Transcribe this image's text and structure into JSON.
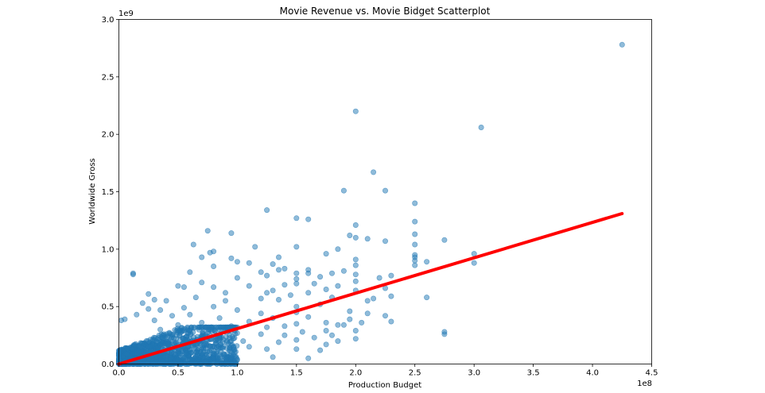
{
  "chart_data": {
    "type": "scatter",
    "title": "Movie Revenue vs. Movie Bidget Scatterplot",
    "xlabel": "Production Budget",
    "ylabel": "Worldwide Gross",
    "x_offset_label": "1e8",
    "y_offset_label": "1e9",
    "xlim": [
      0,
      4.5
    ],
    "ylim": [
      0,
      3.0
    ],
    "x_ticks": [
      "0.0",
      "0.5",
      "1.0",
      "1.5",
      "2.0",
      "2.5",
      "3.0",
      "3.5",
      "4.0",
      "4.5"
    ],
    "y_ticks": [
      "0.0",
      "0.5",
      "1.0",
      "1.5",
      "2.0",
      "2.5",
      "3.0"
    ],
    "grid": false,
    "point_color": "#1f77b4",
    "line_color": "#ff0000",
    "points": [
      [
        4.25,
        2.78
      ],
      [
        2.0,
        2.2
      ],
      [
        3.06,
        2.06
      ],
      [
        2.15,
        1.67
      ],
      [
        2.25,
        1.51
      ],
      [
        1.9,
        1.51
      ],
      [
        2.5,
        1.4
      ],
      [
        1.25,
        1.34
      ],
      [
        1.5,
        1.27
      ],
      [
        1.6,
        1.26
      ],
      [
        2.5,
        1.24
      ],
      [
        2.0,
        1.21
      ],
      [
        0.75,
        1.16
      ],
      [
        0.95,
        1.14
      ],
      [
        2.5,
        1.13
      ],
      [
        1.95,
        1.12
      ],
      [
        2.0,
        1.1
      ],
      [
        2.1,
        1.09
      ],
      [
        2.75,
        1.08
      ],
      [
        2.25,
        1.07
      ],
      [
        2.5,
        1.04
      ],
      [
        0.63,
        1.04
      ],
      [
        1.15,
        1.02
      ],
      [
        1.5,
        1.02
      ],
      [
        1.85,
        1.0
      ],
      [
        0.8,
        0.98
      ],
      [
        0.77,
        0.97
      ],
      [
        3.0,
        0.96
      ],
      [
        1.75,
        0.96
      ],
      [
        2.5,
        0.95
      ],
      [
        2.5,
        0.93
      ],
      [
        1.35,
        0.93
      ],
      [
        0.7,
        0.93
      ],
      [
        0.95,
        0.92
      ],
      [
        2.0,
        0.91
      ],
      [
        2.5,
        0.9
      ],
      [
        1.0,
        0.89
      ],
      [
        2.6,
        0.89
      ],
      [
        3.0,
        0.88
      ],
      [
        1.1,
        0.88
      ],
      [
        1.3,
        0.87
      ],
      [
        2.0,
        0.86
      ],
      [
        2.5,
        0.86
      ],
      [
        0.8,
        0.85
      ],
      [
        1.4,
        0.83
      ],
      [
        1.6,
        0.82
      ],
      [
        1.35,
        0.82
      ],
      [
        1.9,
        0.81
      ],
      [
        1.2,
        0.8
      ],
      [
        0.6,
        0.8
      ],
      [
        1.5,
        0.79
      ],
      [
        1.6,
        0.79
      ],
      [
        1.8,
        0.79
      ],
      [
        0.12,
        0.79
      ],
      [
        0.12,
        0.78
      ],
      [
        2.0,
        0.78
      ],
      [
        2.3,
        0.77
      ],
      [
        1.25,
        0.77
      ],
      [
        1.7,
        0.76
      ],
      [
        2.2,
        0.75
      ],
      [
        1.0,
        0.75
      ],
      [
        1.5,
        0.74
      ],
      [
        2.0,
        0.72
      ],
      [
        0.7,
        0.71
      ],
      [
        1.65,
        0.7
      ],
      [
        1.5,
        0.7
      ],
      [
        1.4,
        0.69
      ],
      [
        1.85,
        0.68
      ],
      [
        1.1,
        0.68
      ],
      [
        0.5,
        0.68
      ],
      [
        0.55,
        0.67
      ],
      [
        0.8,
        0.67
      ],
      [
        2.25,
        0.66
      ],
      [
        1.75,
        0.65
      ],
      [
        1.3,
        0.64
      ],
      [
        2.0,
        0.64
      ],
      [
        1.6,
        0.62
      ],
      [
        0.9,
        0.62
      ],
      [
        1.25,
        0.62
      ],
      [
        0.25,
        0.61
      ],
      [
        1.45,
        0.6
      ],
      [
        2.3,
        0.59
      ],
      [
        2.6,
        0.58
      ],
      [
        1.8,
        0.58
      ],
      [
        0.65,
        0.58
      ],
      [
        1.2,
        0.57
      ],
      [
        2.15,
        0.57
      ],
      [
        1.35,
        0.56
      ],
      [
        2.1,
        0.55
      ],
      [
        0.9,
        0.55
      ],
      [
        0.4,
        0.55
      ],
      [
        0.3,
        0.56
      ],
      [
        0.2,
        0.53
      ],
      [
        1.7,
        0.52
      ],
      [
        1.5,
        0.5
      ],
      [
        0.8,
        0.5
      ],
      [
        0.55,
        0.49
      ],
      [
        0.25,
        0.48
      ],
      [
        0.35,
        0.47
      ],
      [
        1.0,
        0.47
      ],
      [
        1.95,
        0.46
      ],
      [
        1.5,
        0.45
      ],
      [
        1.2,
        0.44
      ],
      [
        2.1,
        0.44
      ],
      [
        0.15,
        0.43
      ],
      [
        0.6,
        0.43
      ],
      [
        0.45,
        0.42
      ],
      [
        2.25,
        0.42
      ],
      [
        1.6,
        0.41
      ],
      [
        1.3,
        0.4
      ],
      [
        0.85,
        0.4
      ],
      [
        1.95,
        0.39
      ],
      [
        0.05,
        0.39
      ],
      [
        0.02,
        0.38
      ],
      [
        0.3,
        0.38
      ],
      [
        1.1,
        0.37
      ],
      [
        2.3,
        0.37
      ],
      [
        1.75,
        0.36
      ],
      [
        2.05,
        0.36
      ],
      [
        0.7,
        0.36
      ],
      [
        1.5,
        0.35
      ],
      [
        0.5,
        0.34
      ],
      [
        1.85,
        0.34
      ],
      [
        1.9,
        0.34
      ],
      [
        0.95,
        0.33
      ],
      [
        1.4,
        0.33
      ],
      [
        1.0,
        0.32
      ],
      [
        1.25,
        0.32
      ],
      [
        2.75,
        0.28
      ],
      [
        2.75,
        0.26
      ],
      [
        2.0,
        0.29
      ],
      [
        1.75,
        0.29
      ],
      [
        1.55,
        0.28
      ],
      [
        0.35,
        0.3
      ],
      [
        0.6,
        0.29
      ],
      [
        0.9,
        0.3
      ],
      [
        1.2,
        0.26
      ],
      [
        1.4,
        0.25
      ],
      [
        1.8,
        0.25
      ],
      [
        1.65,
        0.23
      ],
      [
        2.0,
        0.22
      ],
      [
        1.5,
        0.21
      ],
      [
        1.85,
        0.2
      ],
      [
        1.05,
        0.2
      ],
      [
        0.7,
        0.22
      ],
      [
        1.35,
        0.19
      ],
      [
        1.75,
        0.17
      ],
      [
        1.1,
        0.15
      ],
      [
        1.25,
        0.13
      ],
      [
        1.5,
        0.13
      ],
      [
        0.95,
        0.16
      ],
      [
        1.6,
        0.05
      ],
      [
        0.85,
        0.08
      ],
      [
        1.0,
        0.04
      ],
      [
        1.3,
        0.06
      ],
      [
        1.7,
        0.12
      ]
    ],
    "dense_cluster": {
      "xmax": 1.0,
      "ymax": 0.27
    },
    "regression_line": {
      "x": [
        0.0,
        4.25
      ],
      "y": [
        -0.01,
        1.31
      ]
    }
  }
}
